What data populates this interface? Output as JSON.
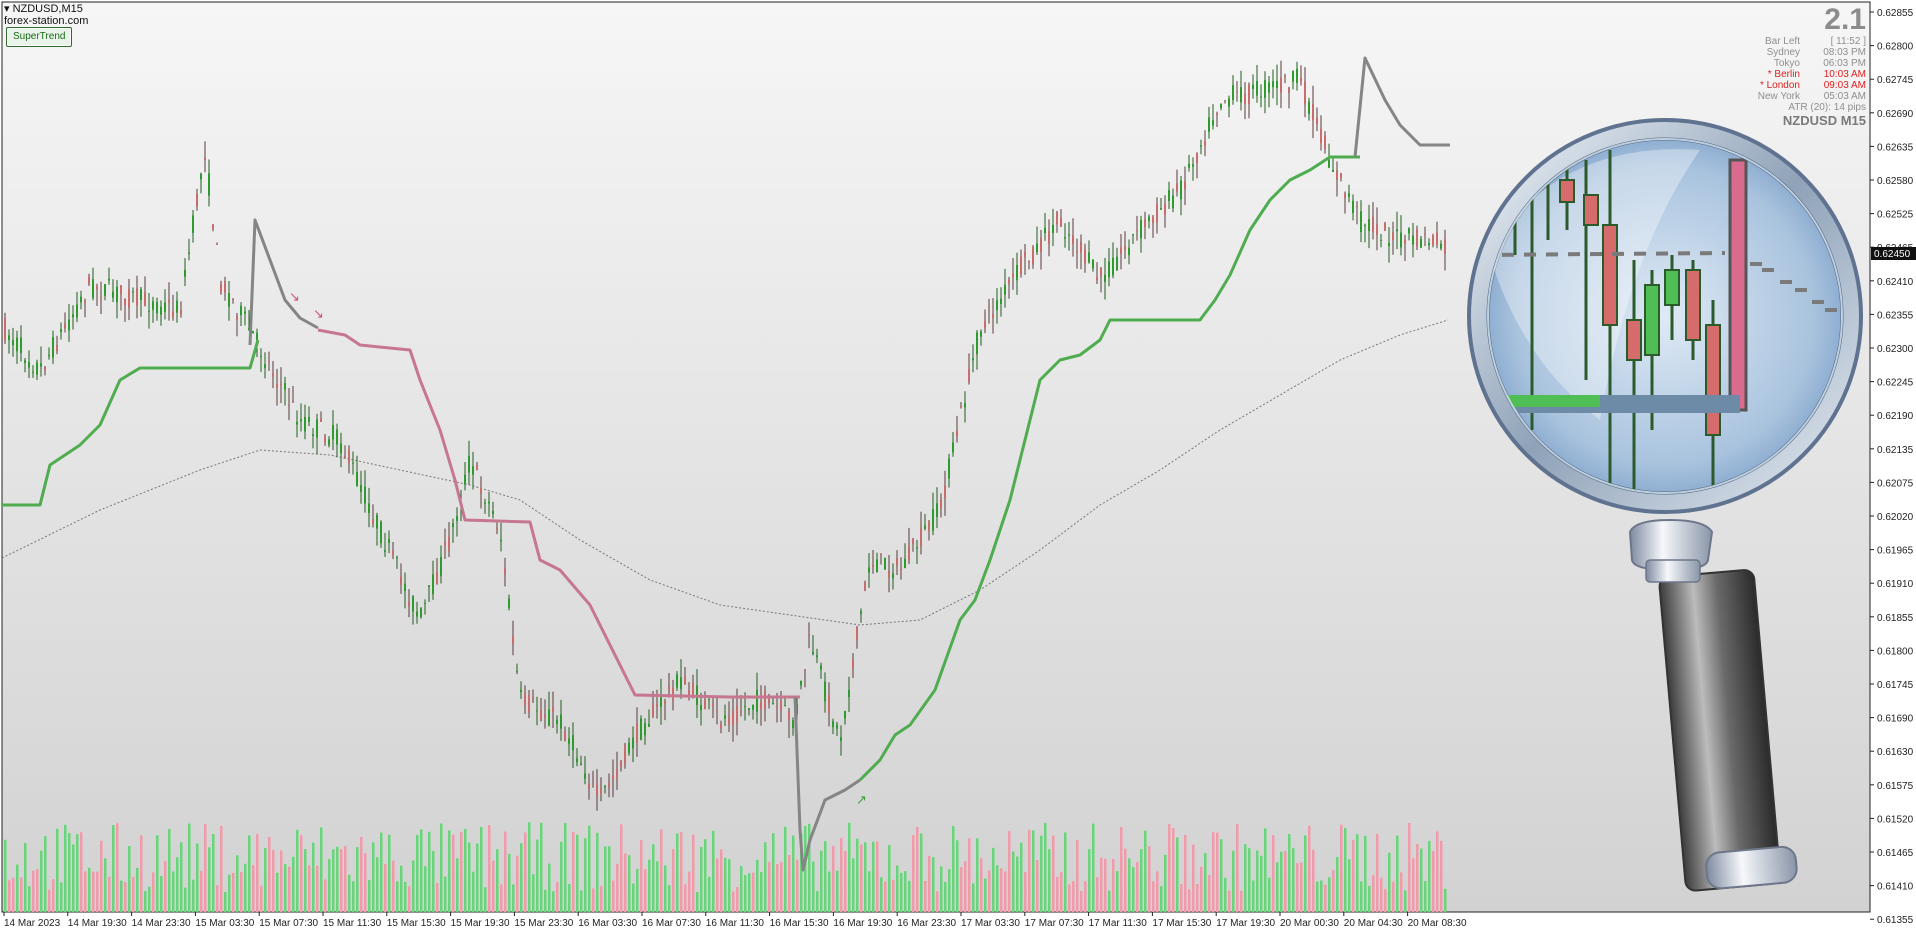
{
  "header": {
    "symbol_tf": "NZDUSD,M15",
    "site": "forex-station.com",
    "indicator_button": "SuperTrend"
  },
  "info_panel": {
    "version": "2.1",
    "rows": [
      {
        "label": "Bar Left",
        "value": "[ 11:52 ]",
        "highlight": false
      },
      {
        "label": "Sydney",
        "value": "08:03 PM",
        "highlight": false
      },
      {
        "label": "Tokyo",
        "value": "06:03 PM",
        "highlight": false
      },
      {
        "label": "* Berlin",
        "value": "10:03 AM",
        "highlight": true
      },
      {
        "label": "* London",
        "value": "09:03 AM",
        "highlight": true
      },
      {
        "label": "New York",
        "value": "05:03 AM",
        "highlight": false
      }
    ],
    "atr": "ATR (20): 14 pips",
    "symbol": "NZDUSD M15"
  },
  "price_axis": {
    "ticks": [
      "0.62855",
      "0.62800",
      "0.62745",
      "0.62690",
      "0.62635",
      "0.62580",
      "0.62525",
      "0.62465",
      "0.62410",
      "0.62355",
      "0.62300",
      "0.62245",
      "0.62190",
      "0.62135",
      "0.62075",
      "0.62020",
      "0.61965",
      "0.61910",
      "0.61855",
      "0.61800",
      "0.61745",
      "0.61690",
      "0.61630",
      "0.61575",
      "0.61520",
      "0.61465",
      "0.61410",
      "0.61355"
    ],
    "current_price": "0.62450"
  },
  "time_axis": {
    "ticks": [
      "14 Mar 2023",
      "14 Mar 19:30",
      "14 Mar 23:30",
      "15 Mar 03:30",
      "15 Mar 07:30",
      "15 Mar 11:30",
      "15 Mar 15:30",
      "15 Mar 19:30",
      "15 Mar 23:30",
      "16 Mar 03:30",
      "16 Mar 07:30",
      "16 Mar 11:30",
      "16 Mar 15:30",
      "16 Mar 19:30",
      "16 Mar 23:30",
      "17 Mar 03:30",
      "17 Mar 07:30",
      "17 Mar 11:30",
      "17 Mar 15:30",
      "17 Mar 19:30",
      "20 Mar 00:30",
      "20 Mar 04:30",
      "20 Mar 08:30"
    ]
  },
  "colors": {
    "bull": "#2f9a2f",
    "bear": "#c86d6d",
    "supertrend_up": "#4fac4f",
    "supertrend_down": "#c77690",
    "supertrend_neutral": "#858585",
    "volume_bull": "#67d67a",
    "volume_bear": "#f19aaa"
  },
  "magnifier_icon": "magnifying-glass-icon"
}
